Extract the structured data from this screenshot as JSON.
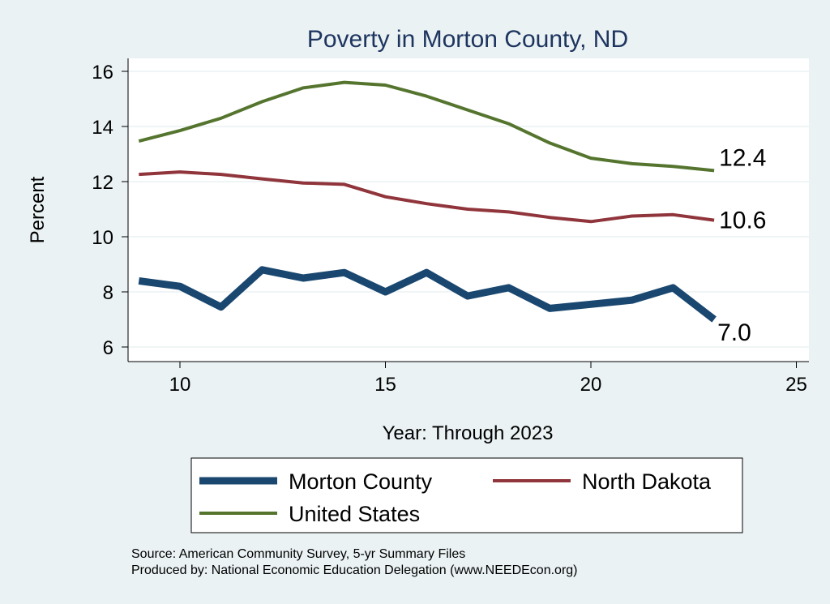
{
  "chart_data": {
    "type": "line",
    "title": "Poverty in Morton County, ND",
    "xlabel": "Year: Through 2023",
    "ylabel": "Percent",
    "xlim": [
      8.7,
      25.3
    ],
    "ylim": [
      5.5,
      16.5
    ],
    "xticks": [
      10,
      15,
      20,
      25
    ],
    "yticks": [
      6,
      8,
      10,
      12,
      14,
      16
    ],
    "grid": true,
    "legend_position": "bottom",
    "x": [
      9,
      10,
      11,
      12,
      13,
      14,
      15,
      16,
      17,
      18,
      19,
      20,
      21,
      22,
      23
    ],
    "series": [
      {
        "name": "Morton County",
        "color": "#1a476f",
        "end_label": "7.0",
        "values": [
          8.4,
          8.2,
          7.45,
          8.8,
          8.5,
          8.7,
          8.0,
          8.7,
          7.85,
          8.15,
          7.4,
          7.55,
          7.7,
          8.15,
          7.0
        ]
      },
      {
        "name": "North Dakota",
        "color": "#90353b",
        "end_label": "10.6",
        "values": [
          12.26,
          12.35,
          12.26,
          12.1,
          11.95,
          11.9,
          11.45,
          11.2,
          11.0,
          10.9,
          10.7,
          10.55,
          10.75,
          10.8,
          10.6
        ]
      },
      {
        "name": "United States",
        "color": "#55752f",
        "end_label": "12.4",
        "values": [
          13.47,
          13.85,
          14.3,
          14.9,
          15.4,
          15.6,
          15.5,
          15.1,
          14.6,
          14.1,
          13.4,
          12.85,
          12.65,
          12.55,
          12.4
        ]
      }
    ]
  },
  "notes": {
    "source": "Source: American Community Survey, 5-yr Summary Files",
    "produced": "Produced by: National Economic Education Delegation (www.NEEDEcon.org)"
  }
}
